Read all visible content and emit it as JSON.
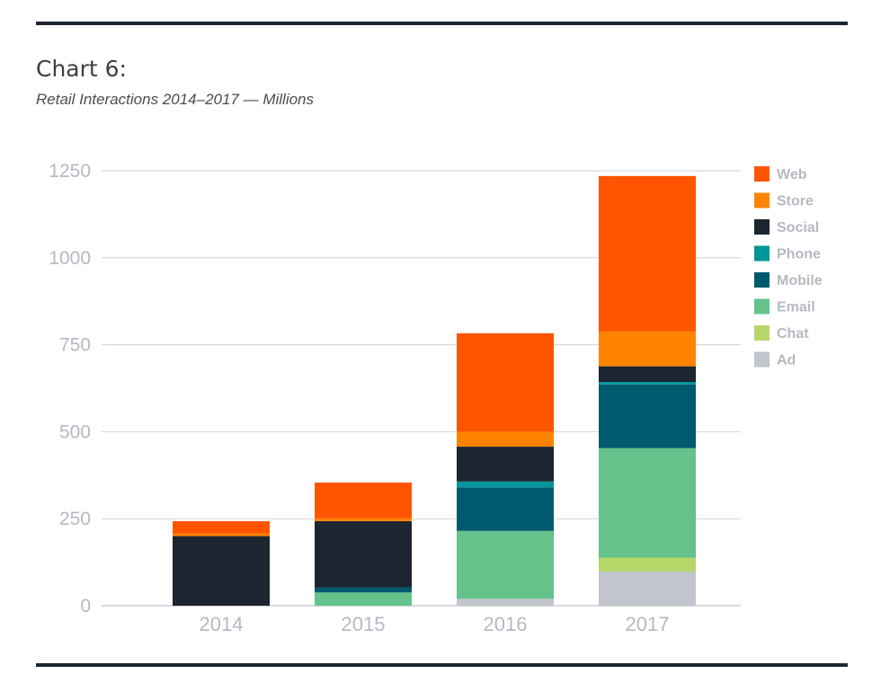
{
  "chart_data": {
    "type": "bar",
    "stacked": true,
    "title": "Chart 6:",
    "subtitle": "Retail Interactions 2014–2017 — Millions",
    "categories": [
      "2014",
      "2015",
      "2016",
      "2017"
    ],
    "ylim": [
      0,
      1250
    ],
    "yticks": [
      0,
      250,
      500,
      750,
      1000,
      1250
    ],
    "grid": true,
    "legend": "right",
    "series": [
      {
        "name": "Ad",
        "color": "#c2c5cd",
        "values": [
          0,
          0,
          20,
          98
        ]
      },
      {
        "name": "Chat",
        "color": "#b7d66a",
        "values": [
          0,
          0,
          0,
          40
        ]
      },
      {
        "name": "Email",
        "color": "#64c28a",
        "values": [
          0,
          38,
          195,
          315
        ]
      },
      {
        "name": "Mobile",
        "color": "#005a6e",
        "values": [
          0,
          15,
          125,
          183
        ]
      },
      {
        "name": "Phone",
        "color": "#00969a",
        "values": [
          0,
          0,
          17,
          7
        ]
      },
      {
        "name": "Social",
        "color": "#1c2530",
        "values": [
          200,
          190,
          100,
          45
        ]
      },
      {
        "name": "Store",
        "color": "#ff8200",
        "values": [
          8,
          8,
          43,
          100
        ]
      },
      {
        "name": "Web",
        "color": "#ff5500",
        "values": [
          35,
          103,
          283,
          447
        ]
      }
    ],
    "legend_order": [
      "Web",
      "Store",
      "Social",
      "Phone",
      "Mobile",
      "Email",
      "Chat",
      "Ad"
    ]
  }
}
